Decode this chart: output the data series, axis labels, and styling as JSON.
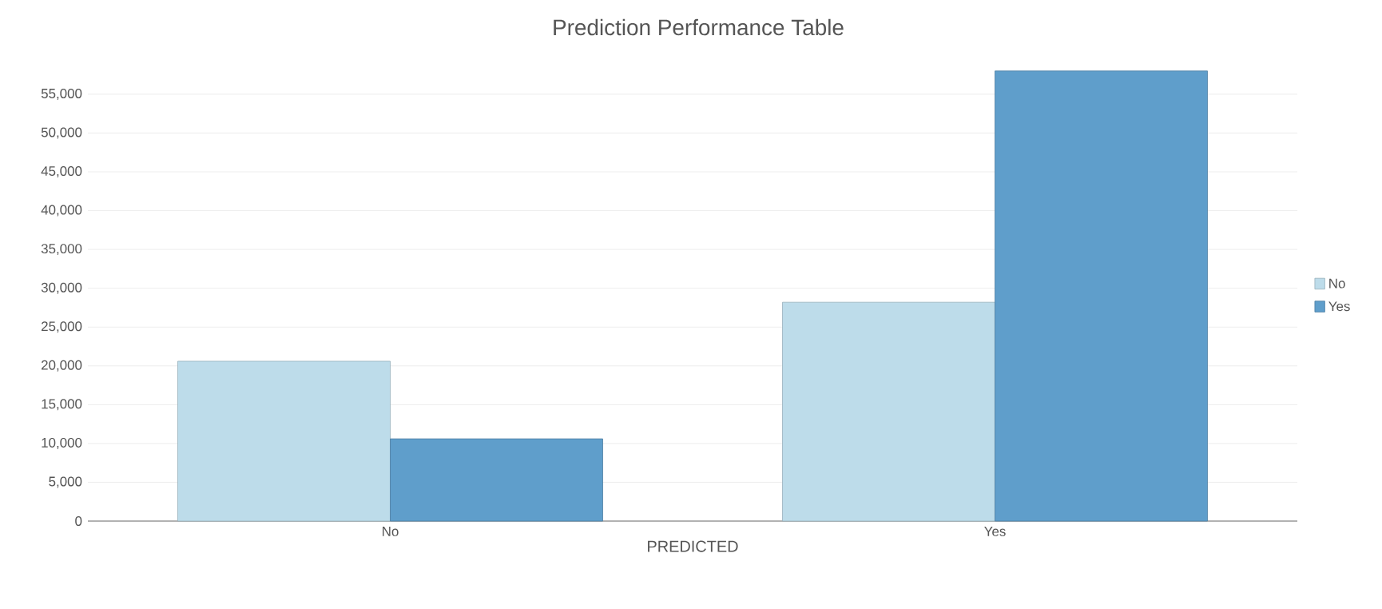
{
  "chart_data": {
    "type": "bar",
    "title": "Prediction Performance Table",
    "xlabel": "PREDICTED",
    "categories": [
      "No",
      "Yes"
    ],
    "series": [
      {
        "name": "No",
        "color": "#bddcea",
        "values": [
          20600,
          28200
        ]
      },
      {
        "name": "Yes",
        "color": "#5f9ecb",
        "values": [
          10600,
          58000
        ]
      }
    ],
    "ylim": [
      0,
      58000
    ],
    "yticks": [
      0,
      {
        "value": 5000,
        "label": "5,000"
      },
      {
        "value": 10000,
        "label": "10,000"
      },
      {
        "value": 15000,
        "label": "15,000"
      },
      {
        "value": 20000,
        "label": "20,000"
      },
      {
        "value": 25000,
        "label": "25,000"
      },
      {
        "value": 30000,
        "label": "30,000"
      },
      {
        "value": 35000,
        "label": "35,000"
      },
      {
        "value": 40000,
        "label": "40,000"
      },
      {
        "value": 45000,
        "label": "45,000"
      },
      {
        "value": 50000,
        "label": "50,000"
      },
      {
        "value": 55000,
        "label": "55,000"
      }
    ],
    "grid": "y",
    "legend": "right"
  }
}
